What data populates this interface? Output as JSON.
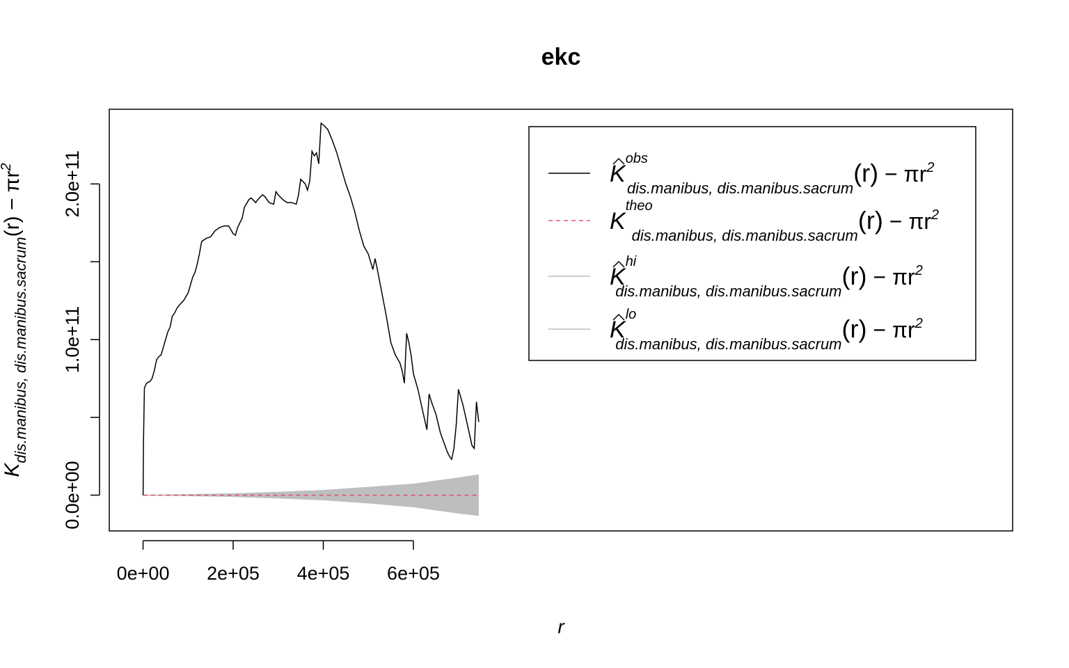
{
  "chart_data": {
    "type": "line",
    "title": "ekc",
    "xlabel": "r",
    "ylabel": {
      "symbol": "K",
      "subscript": "dis.manibus, dis.manibus.sacrum",
      "arg": "(r)",
      "minus": " − πr",
      "power": "2"
    },
    "xlim": [
      -75000,
      1930000
    ],
    "ylim": [
      -23000000000,
      248000000000
    ],
    "x_ticks": [
      0,
      200000,
      400000,
      600000
    ],
    "x_tick_labels": [
      "0e+00",
      "2e+05",
      "4e+05",
      "6e+05"
    ],
    "y_ticks": [
      0,
      50000000000,
      100000000000,
      150000000000,
      200000000000
    ],
    "y_tick_labels": [
      "0.0e+00",
      "",
      "1.0e+11",
      "",
      "2.0e+11"
    ],
    "grid": false,
    "legend_position": "top-right",
    "colors": {
      "obs": "#000000",
      "theo": "#DF536B",
      "envelope": "#BEBEBE"
    },
    "legend": [
      {
        "series": "obs",
        "symbol": "K",
        "hat": true,
        "superscript": "obs",
        "subscript": "dis.manibus, dis.manibus.sacrum",
        "arg": "(r)",
        "minus": " − πr",
        "power": "2",
        "line": "solid"
      },
      {
        "series": "theo",
        "symbol": "K",
        "hat": false,
        "superscript": "theo",
        "subscript": "dis.manibus, dis.manibus.sacrum",
        "arg": "(r)",
        "minus": " − πr",
        "power": "2",
        "line": "dashed"
      },
      {
        "series": "hi",
        "symbol": "K",
        "hat": true,
        "superscript": "hi",
        "subscript": "dis.manibus, dis.manibus.sacrum",
        "arg": "(r)",
        "minus": " − πr",
        "power": "2",
        "line": "solid"
      },
      {
        "series": "lo",
        "symbol": "K",
        "hat": true,
        "superscript": "lo",
        "subscript": "dis.manibus, dis.manibus.sacrum",
        "arg": "(r)",
        "minus": " − πr",
        "power": "2",
        "line": "solid"
      }
    ],
    "series": [
      {
        "key": "obs",
        "x": [
          0,
          1000,
          3000,
          8000,
          15000,
          20000,
          25000,
          30000,
          35000,
          40000,
          45000,
          50000,
          55000,
          60000,
          65000,
          70000,
          75000,
          80000,
          90000,
          100000,
          110000,
          115000,
          120000,
          125000,
          130000,
          140000,
          150000,
          155000,
          160000,
          165000,
          170000,
          180000,
          190000,
          200000,
          205000,
          210000,
          215000,
          220000,
          225000,
          235000,
          240000,
          250000,
          255000,
          265000,
          270000,
          280000,
          290000,
          295000,
          300000,
          310000,
          320000,
          330000,
          340000,
          345000,
          350000,
          360000,
          365000,
          370000,
          375000,
          380000,
          385000,
          390000,
          395000,
          400000,
          410000,
          420000,
          430000,
          440000,
          450000,
          460000,
          470000,
          480000,
          490000,
          500000,
          510000,
          515000,
          520000,
          530000,
          540000,
          550000,
          560000,
          570000,
          575000,
          580000,
          585000,
          590000,
          595000,
          600000,
          610000,
          620000,
          630000,
          635000,
          640000,
          650000,
          660000,
          670000,
          675000,
          680000,
          685000,
          690000,
          695000,
          700000,
          710000,
          720000,
          730000,
          735000,
          740000,
          745000
        ],
        "y": [
          0,
          35000000000,
          69000000000,
          72000000000,
          73000000000,
          75000000000,
          80000000000,
          87000000000,
          89000000000,
          90000000000,
          95000000000,
          100000000000,
          105000000000,
          108000000000,
          115000000000,
          117000000000,
          120000000000,
          122000000000,
          125000000000,
          130000000000,
          140000000000,
          143000000000,
          148000000000,
          155000000000,
          163000000000,
          165000000000,
          166000000000,
          168000000000,
          170000000000,
          171000000000,
          172000000000,
          173000000000,
          173000000000,
          168000000000,
          167000000000,
          172000000000,
          175000000000,
          178000000000,
          185000000000,
          190000000000,
          191000000000,
          188000000000,
          190000000000,
          193000000000,
          192000000000,
          188000000000,
          187000000000,
          195000000000,
          193000000000,
          190000000000,
          188000000000,
          188000000000,
          187000000000,
          193000000000,
          203000000000,
          200000000000,
          196000000000,
          202000000000,
          221000000000,
          218000000000,
          220000000000,
          213000000000,
          239000000000,
          238000000000,
          235000000000,
          228000000000,
          220000000000,
          210000000000,
          200000000000,
          192000000000,
          182000000000,
          170000000000,
          160000000000,
          155000000000,
          145000000000,
          152000000000,
          145000000000,
          130000000000,
          115000000000,
          98000000000,
          90000000000,
          85000000000,
          80000000000,
          72000000000,
          104000000000,
          98000000000,
          90000000000,
          78000000000,
          68000000000,
          55000000000,
          42000000000,
          65000000000,
          60000000000,
          52000000000,
          40000000000,
          32000000000,
          28000000000,
          25000000000,
          23000000000,
          30000000000,
          45000000000,
          68000000000,
          58000000000,
          45000000000,
          32000000000,
          30000000000,
          60000000000,
          47000000000
        ]
      },
      {
        "key": "theo",
        "x": [
          0,
          745000
        ],
        "y": [
          0,
          0
        ]
      },
      {
        "key": "hi",
        "x": [
          0,
          100000,
          200000,
          300000,
          400000,
          500000,
          600000,
          700000,
          745000
        ],
        "y": [
          0,
          300000000,
          800000000,
          1800000000,
          3000000000,
          5000000000,
          7000000000,
          11000000000,
          13000000000
        ]
      },
      {
        "key": "lo",
        "x": [
          0,
          100000,
          200000,
          300000,
          400000,
          500000,
          600000,
          700000,
          745000
        ],
        "y": [
          0,
          -300000000,
          -800000000,
          -1800000000,
          -3000000000,
          -5000000000,
          -7500000000,
          -11500000000,
          -13000000000
        ]
      }
    ]
  }
}
